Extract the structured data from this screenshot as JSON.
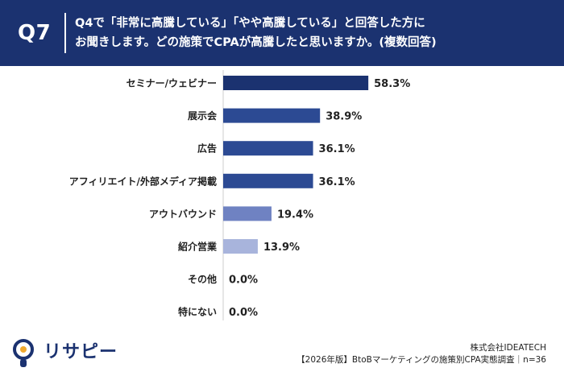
{
  "header": {
    "question_number": "Q7",
    "question_line1": "Q4で「非常に高騰している」「やや高騰している」と回答した方に",
    "question_line2": "お聞きします。どの施策でCPAが高騰したと思いますか。(複数回答)"
  },
  "colors": {
    "header_bg": "#1b3270",
    "bar_colors": [
      "#1b3270",
      "#2c4a93",
      "#2c4a93",
      "#2c4a93",
      "#6f82c2",
      "#a8b4dc",
      "#a8b4dc",
      "#a8b4dc"
    ]
  },
  "chart_data": {
    "type": "bar",
    "orientation": "horizontal",
    "categories": [
      "セミナー/ウェビナー",
      "展示会",
      "広告",
      "アフィリエイト/外部メディア掲載",
      "アウトバウンド",
      "紹介営業",
      "その他",
      "特にない"
    ],
    "values": [
      58.3,
      38.9,
      36.1,
      36.1,
      19.4,
      13.9,
      0.0,
      0.0
    ],
    "value_labels": [
      "58.3%",
      "38.9%",
      "36.1%",
      "36.1%",
      "19.4%",
      "13.9%",
      "0.0%",
      "0.0%"
    ],
    "xlim": [
      0,
      100
    ],
    "grid": false,
    "legend": "none"
  },
  "footer": {
    "logo_text": "リサピー",
    "company": "株式会社IDEATECH",
    "source": "【2026年版】BtoBマーケティングの施策別CPA実態調査｜n=36"
  }
}
